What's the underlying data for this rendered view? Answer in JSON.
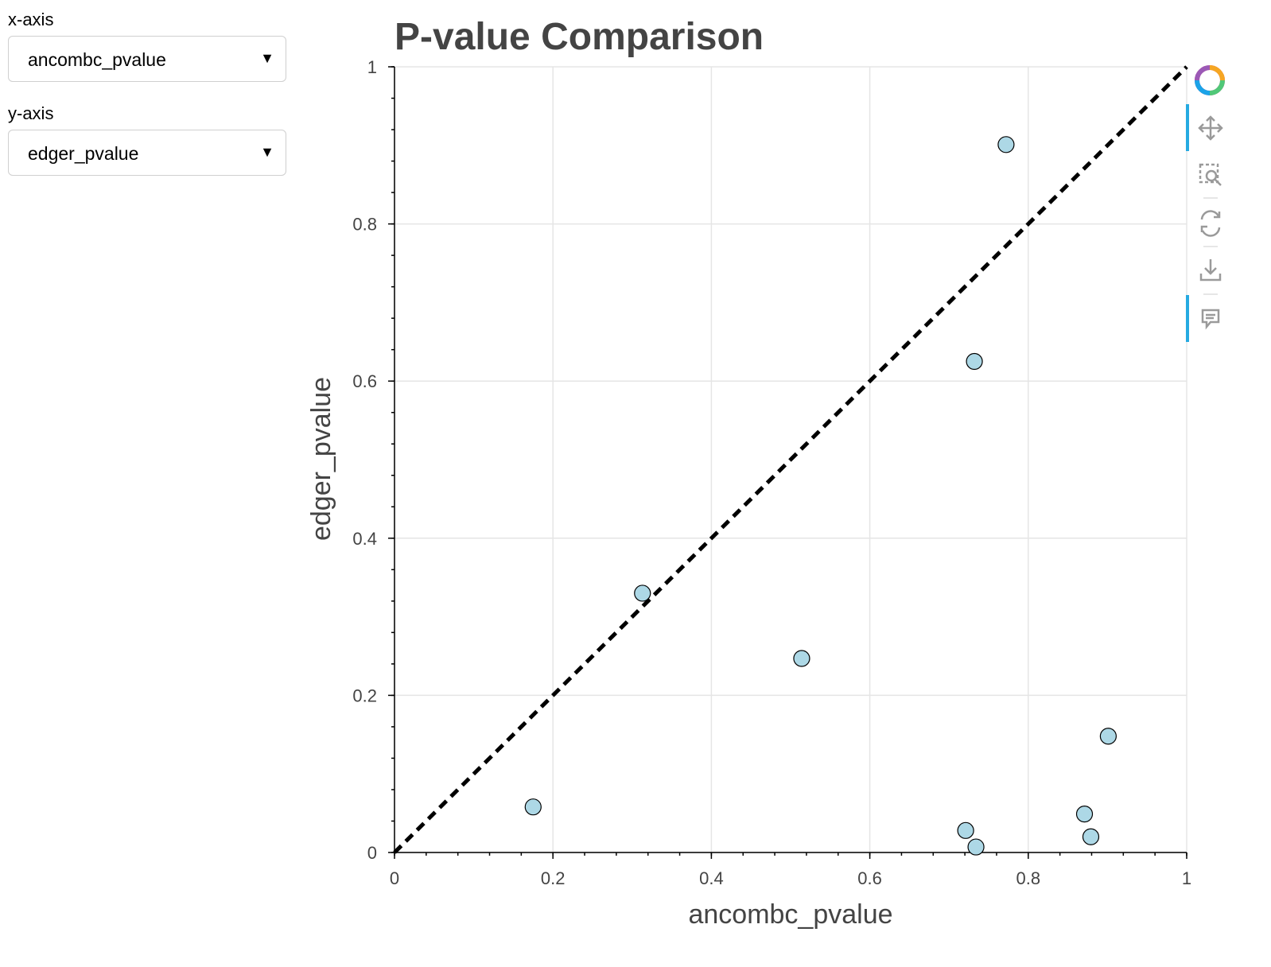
{
  "controls": {
    "x_axis_label": "x-axis",
    "x_axis_value": "ancombc_pvalue",
    "y_axis_label": "y-axis",
    "y_axis_value": "edger_pvalue"
  },
  "toolbar": {
    "tools": [
      "bokeh-logo-icon",
      "pan-icon",
      "box-zoom-icon",
      "reset-icon",
      "save-icon",
      "hover-icon"
    ],
    "active_tools": [
      "pan-icon",
      "hover-icon"
    ],
    "accent_color": "#26aae1"
  },
  "chart_data": {
    "type": "scatter",
    "title": "P-value Comparison",
    "xlabel": "ancombc_pvalue",
    "ylabel": "edger_pvalue",
    "xlim": [
      0,
      1
    ],
    "ylim": [
      0,
      1
    ],
    "x_ticks": [
      "0",
      "0.2",
      "0.4",
      "0.6",
      "0.8",
      "1"
    ],
    "y_ticks": [
      "0",
      "0.2",
      "0.4",
      "0.6",
      "0.8",
      "1"
    ],
    "grid": true,
    "reference_line": {
      "style": "dashed",
      "from": [
        0,
        0
      ],
      "to": [
        1,
        1
      ],
      "color": "#000000"
    },
    "series": [
      {
        "marker_color": "#add8e6",
        "edge_color": "#000000",
        "points": [
          {
            "x": 0.175,
            "y": 0.058
          },
          {
            "x": 0.313,
            "y": 0.33
          },
          {
            "x": 0.514,
            "y": 0.247
          },
          {
            "x": 0.721,
            "y": 0.028
          },
          {
            "x": 0.734,
            "y": 0.007
          },
          {
            "x": 0.732,
            "y": 0.625
          },
          {
            "x": 0.772,
            "y": 0.901
          },
          {
            "x": 0.871,
            "y": 0.049
          },
          {
            "x": 0.879,
            "y": 0.02
          },
          {
            "x": 0.901,
            "y": 0.148
          }
        ]
      }
    ]
  }
}
